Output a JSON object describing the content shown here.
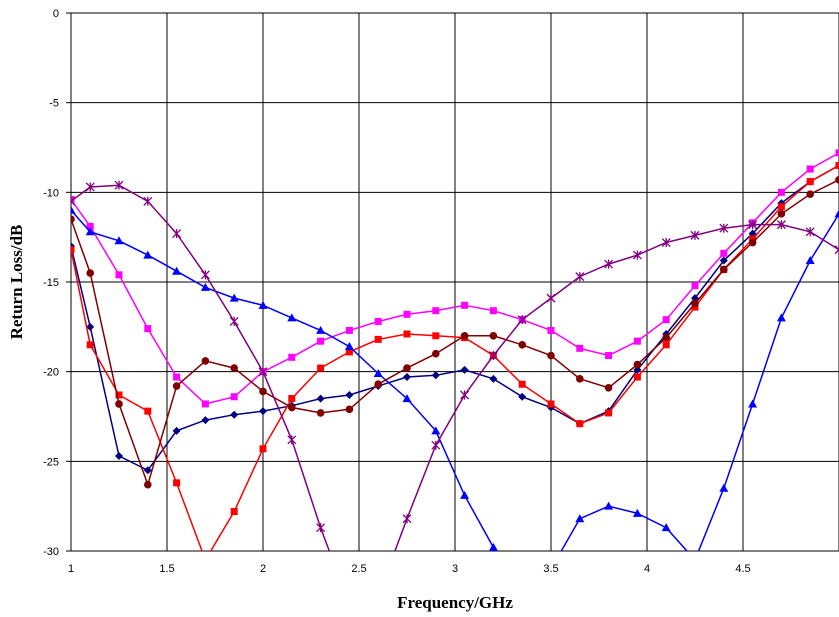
{
  "chart_data": {
    "type": "line",
    "title": "",
    "xlabel": "Frequency/GHz",
    "ylabel": "Return Loss/dB",
    "xlim": [
      1,
      5
    ],
    "ylim": [
      -30,
      0
    ],
    "grid": true,
    "x_ticks": [
      "1",
      "1.5",
      "2",
      "2.5",
      "3",
      "3.5",
      "4",
      "4.5"
    ],
    "y_ticks": [
      "0",
      "-5",
      "-10",
      "-15",
      "-20",
      "-25",
      "-30"
    ],
    "series": [
      {
        "color": "#000080",
        "marker": "diamond",
        "x": [
          1,
          1.1,
          1.25,
          1.4,
          1.55,
          1.7,
          1.85,
          2.0,
          2.15,
          2.3,
          2.45,
          2.6,
          2.75,
          2.9,
          3.05,
          3.2,
          3.35,
          3.5,
          3.65,
          3.8,
          3.95,
          4.1,
          4.25,
          4.4,
          4.55,
          4.7,
          4.85,
          5.0
        ],
        "y": [
          -13.0,
          -17.5,
          -24.7,
          -25.5,
          -23.3,
          -22.7,
          -22.4,
          -22.2,
          -21.9,
          -21.5,
          -21.3,
          -20.8,
          -20.3,
          -20.2,
          -19.9,
          -20.4,
          -21.4,
          -22.0,
          -22.9,
          -22.2,
          -19.9,
          -17.9,
          -15.9,
          -13.8,
          -12.3,
          -10.6,
          -9.4,
          -8.5
        ]
      },
      {
        "color": "#ff0000",
        "marker": "square",
        "x": [
          1,
          1.1,
          1.25,
          1.4,
          1.55,
          1.7,
          1.85,
          2.0,
          2.15,
          2.3,
          2.45,
          2.6,
          2.75,
          2.9,
          3.05,
          3.2,
          3.35,
          3.5,
          3.65,
          3.8,
          3.95,
          4.1,
          4.25,
          4.4,
          4.55,
          4.7,
          4.85,
          5.0
        ],
        "y": [
          -13.2,
          -18.5,
          -21.3,
          -22.2,
          -26.2,
          -30.5,
          -27.8,
          -24.3,
          -21.5,
          -19.8,
          -18.9,
          -18.2,
          -17.9,
          -18.0,
          -18.1,
          -19.1,
          -20.7,
          -21.8,
          -22.9,
          -22.3,
          -20.3,
          -18.5,
          -16.4,
          -14.3,
          -12.6,
          -10.8,
          -9.4,
          -8.5
        ]
      },
      {
        "color": "#ff00ff",
        "marker": "square",
        "x": [
          1,
          1.1,
          1.25,
          1.4,
          1.55,
          1.7,
          1.85,
          2.0,
          2.15,
          2.3,
          2.45,
          2.6,
          2.75,
          2.9,
          3.05,
          3.2,
          3.35,
          3.5,
          3.65,
          3.8,
          3.95,
          4.1,
          4.25,
          4.4,
          4.55,
          4.7,
          4.85,
          5.0
        ],
        "y": [
          -10.4,
          -11.9,
          -14.6,
          -17.6,
          -20.3,
          -21.8,
          -21.4,
          -20.0,
          -19.2,
          -18.3,
          -17.7,
          -17.2,
          -16.8,
          -16.6,
          -16.3,
          -16.6,
          -17.1,
          -17.7,
          -18.7,
          -19.1,
          -18.3,
          -17.1,
          -15.2,
          -13.4,
          -11.7,
          -10.0,
          -8.7,
          -7.8
        ]
      },
      {
        "color": "#0000ff",
        "marker": "triangle",
        "x": [
          1,
          1.1,
          1.25,
          1.4,
          1.55,
          1.7,
          1.85,
          2.0,
          2.15,
          2.3,
          2.45,
          2.6,
          2.75,
          2.9,
          3.05,
          3.2,
          3.35,
          3.5,
          3.65,
          3.8,
          3.95,
          4.1,
          4.25,
          4.4,
          4.55,
          4.7,
          4.85,
          5.0
        ],
        "y": [
          -11.0,
          -12.2,
          -12.7,
          -13.5,
          -14.4,
          -15.3,
          -15.9,
          -16.3,
          -17.0,
          -17.7,
          -18.6,
          -20.1,
          -21.5,
          -23.3,
          -26.9,
          -29.8,
          -31.5,
          -31.0,
          -28.2,
          -27.5,
          -27.9,
          -28.7,
          -30.5,
          -26.5,
          -21.8,
          -17.0,
          -13.8,
          -11.2
        ]
      },
      {
        "color": "#800000",
        "marker": "circle",
        "x": [
          1,
          1.1,
          1.25,
          1.4,
          1.55,
          1.7,
          1.85,
          2.0,
          2.15,
          2.3,
          2.45,
          2.6,
          2.75,
          2.9,
          3.05,
          3.2,
          3.35,
          3.5,
          3.65,
          3.8,
          3.95,
          4.1,
          4.25,
          4.4,
          4.55,
          4.7,
          4.85,
          5.0
        ],
        "y": [
          -11.5,
          -14.5,
          -21.8,
          -26.3,
          -20.8,
          -19.4,
          -19.8,
          -21.1,
          -22.0,
          -22.3,
          -22.1,
          -20.7,
          -19.8,
          -19.0,
          -18.0,
          -18.0,
          -18.5,
          -19.1,
          -20.4,
          -20.9,
          -19.6,
          -18.1,
          -16.2,
          -14.3,
          -12.8,
          -11.2,
          -10.1,
          -9.3
        ]
      },
      {
        "color": "#800080",
        "marker": "asterisk",
        "x": [
          1,
          1.1,
          1.25,
          1.4,
          1.55,
          1.7,
          1.85,
          2.0,
          2.15,
          2.3,
          2.45,
          2.6,
          2.75,
          2.9,
          3.05,
          3.2,
          3.35,
          3.5,
          3.65,
          3.8,
          3.95,
          4.1,
          4.25,
          4.4,
          4.55,
          4.7,
          4.85,
          5.0
        ],
        "y": [
          -10.5,
          -9.7,
          -9.6,
          -10.5,
          -12.3,
          -14.6,
          -17.2,
          -20.0,
          -23.8,
          -28.7,
          -33.0,
          -32.5,
          -28.2,
          -24.1,
          -21.3,
          -19.1,
          -17.1,
          -15.9,
          -14.7,
          -14.0,
          -13.5,
          -12.8,
          -12.4,
          -12.0,
          -11.8,
          -11.8,
          -12.2,
          -13.2
        ]
      }
    ]
  }
}
